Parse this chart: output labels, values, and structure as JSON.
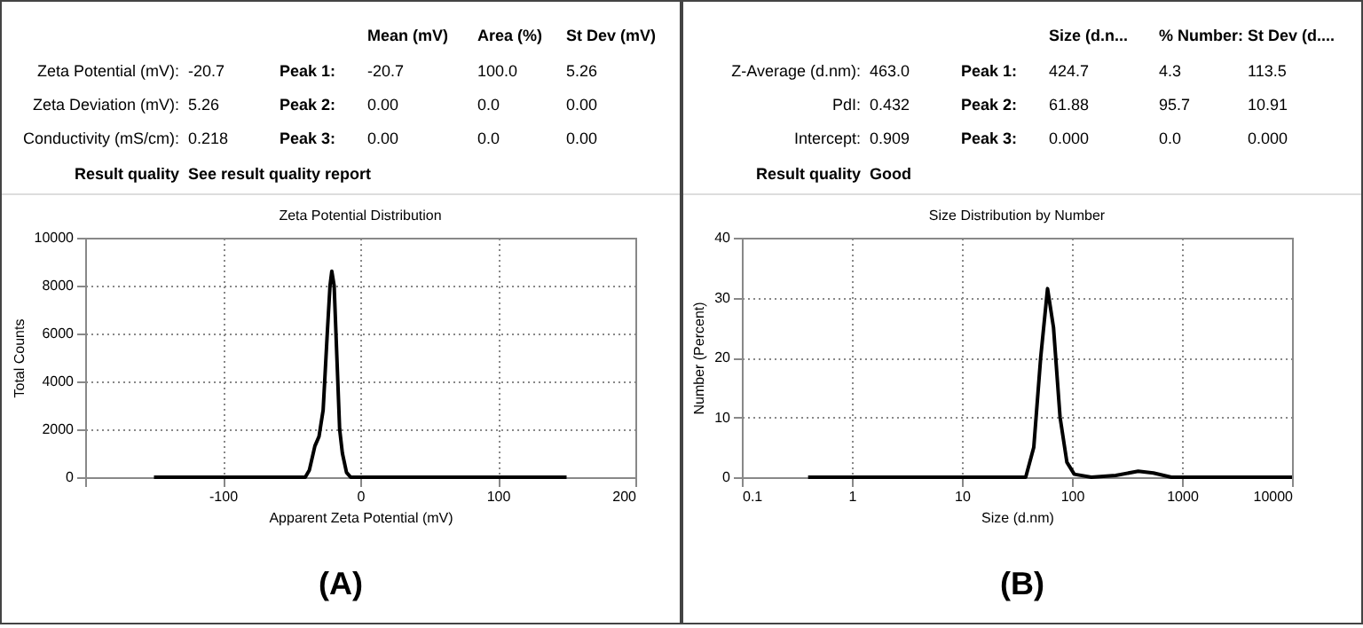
{
  "chart_data": [
    {
      "type": "line",
      "title": "Zeta Potential Distribution",
      "xlabel": "Apparent Zeta Potential (mV)",
      "ylabel": "Total Counts",
      "x": [
        -150,
        -40,
        -37,
        -33,
        -30,
        -27,
        -24,
        -22,
        -20.7,
        -19,
        -17,
        -15,
        -13,
        -10,
        -7,
        150
      ],
      "series": [
        {
          "color": "#000000",
          "values": [
            0,
            0,
            300,
            1300,
            1700,
            2800,
            6000,
            8000,
            8600,
            8000,
            5000,
            2000,
            1000,
            200,
            0,
            0
          ]
        }
      ],
      "xlim": [
        -200,
        200
      ],
      "xticks": [
        {
          "value": -200,
          "label": null
        },
        -100,
        0,
        100,
        200
      ],
      "ylim": [
        0,
        10000
      ],
      "yticks": [
        0,
        2000,
        4000,
        6000,
        8000,
        10000
      ],
      "grid": true,
      "line_style": "solid",
      "annotations": [
        "Mean (mV)",
        "Area (%)",
        "St Dev (mV)",
        "Zeta Potential (mV):",
        "-20.7",
        "Peak 1:",
        "-20.7",
        "100.0",
        "5.26",
        "Zeta Deviation (mV):",
        "5.26",
        "Peak 2:",
        "0.00",
        "0.0",
        "0.00",
        "Conductivity (mS/cm):",
        "0.218",
        "Peak 3:",
        "0.00",
        "0.0",
        "0.00",
        "Result quality",
        "See result quality report",
        "(A)"
      ]
    },
    {
      "type": "line",
      "title": "Size Distribution by Number",
      "xlabel": "Size (d.nm)",
      "ylabel": "Number (Percent)",
      "x": [
        0.4,
        38,
        45,
        52,
        60,
        68,
        78,
        90,
        105,
        150,
        250,
        400,
        550,
        800,
        10000
      ],
      "series": [
        {
          "color": "#000000",
          "values": [
            0,
            0,
            5,
            20,
            31.5,
            25,
            10,
            2.5,
            0.5,
            0,
            0.3,
            1,
            0.7,
            0,
            0
          ]
        }
      ],
      "xlim": [
        0.1,
        10000
      ],
      "xticks": [
        0.1,
        1,
        10,
        100,
        1000,
        10000
      ],
      "log": "x",
      "ylim": [
        0,
        40
      ],
      "yticks": [
        0,
        10,
        20,
        30,
        40
      ],
      "grid": true,
      "line_style": "solid",
      "annotations": [
        "Size (d.n...",
        "% Number:",
        "St Dev (d....",
        "Z-Average (d.nm):",
        "463.0",
        "Peak 1:",
        "424.7",
        "4.3",
        "113.5",
        "PdI:",
        "0.432",
        "Peak 2:",
        "61.88",
        "95.7",
        "10.91",
        "Intercept:",
        "0.909",
        "Peak 3:",
        "0.000",
        "0.0",
        "0.000",
        "Result quality",
        "Good",
        "(B)"
      ]
    }
  ]
}
